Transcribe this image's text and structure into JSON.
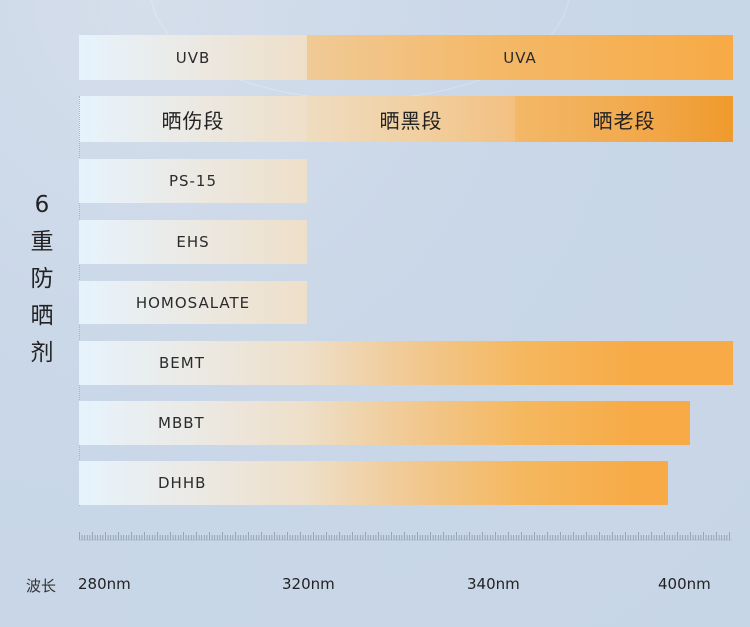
{
  "chart_data": {
    "type": "bar",
    "orientation": "horizontal",
    "title": "",
    "xlabel": "波长",
    "ylabel": "6重防晒剂",
    "x_tick_labels": [
      "280nm",
      "320nm",
      "340nm",
      "400nm"
    ],
    "x_ticks_nm": [
      280,
      320,
      340,
      400
    ],
    "xlim_nm": [
      280,
      400
    ],
    "grid": false,
    "legend": null,
    "bands": [
      {
        "label": "UVB",
        "start": "280nm",
        "end": "320nm"
      },
      {
        "label": "UVA",
        "start": "320nm",
        "end": "400nm"
      }
    ],
    "phases": [
      {
        "label": "晒伤段",
        "start": "280nm",
        "end": "320nm"
      },
      {
        "label": "晒黑段",
        "start": "320nm",
        "end": "340nm"
      },
      {
        "label": "晒老段",
        "start": "340nm",
        "end": "400nm"
      }
    ],
    "categories": [
      "PS-15",
      "EHS",
      "HOMOSALATE",
      "BEMT",
      "MBBT",
      "DHHB"
    ],
    "series": [
      {
        "name": "protection_start_nm",
        "values": [
          280,
          280,
          280,
          280,
          280,
          280
        ]
      },
      {
        "name": "protection_end_nm",
        "values": [
          320,
          320,
          320,
          400,
          393,
          390
        ]
      }
    ]
  },
  "header": {
    "band_row": {
      "uvb": "UVB",
      "uva": "UVA"
    },
    "phase_row": {
      "burn": "晒伤段",
      "tan": "晒黑段",
      "age": "晒老段"
    }
  },
  "side_label": [
    "6",
    "重",
    "防",
    "晒",
    "剂"
  ],
  "rows": [
    {
      "label": "PS-15"
    },
    {
      "label": "EHS"
    },
    {
      "label": "HOMOSALATE"
    },
    {
      "label": "BEMT"
    },
    {
      "label": "MBBT"
    },
    {
      "label": "DHHB"
    }
  ],
  "axis": {
    "title": "波长",
    "ticks": [
      "280nm",
      "320nm",
      "340nm",
      "400nm"
    ]
  },
  "colors": {
    "background": "#c9d7e8",
    "bar_light": "#e6f3fd",
    "bar_cream": "#eedfc8",
    "bar_orange": "#f7aa45",
    "bar_deep_orange": "#ef9a2c"
  }
}
